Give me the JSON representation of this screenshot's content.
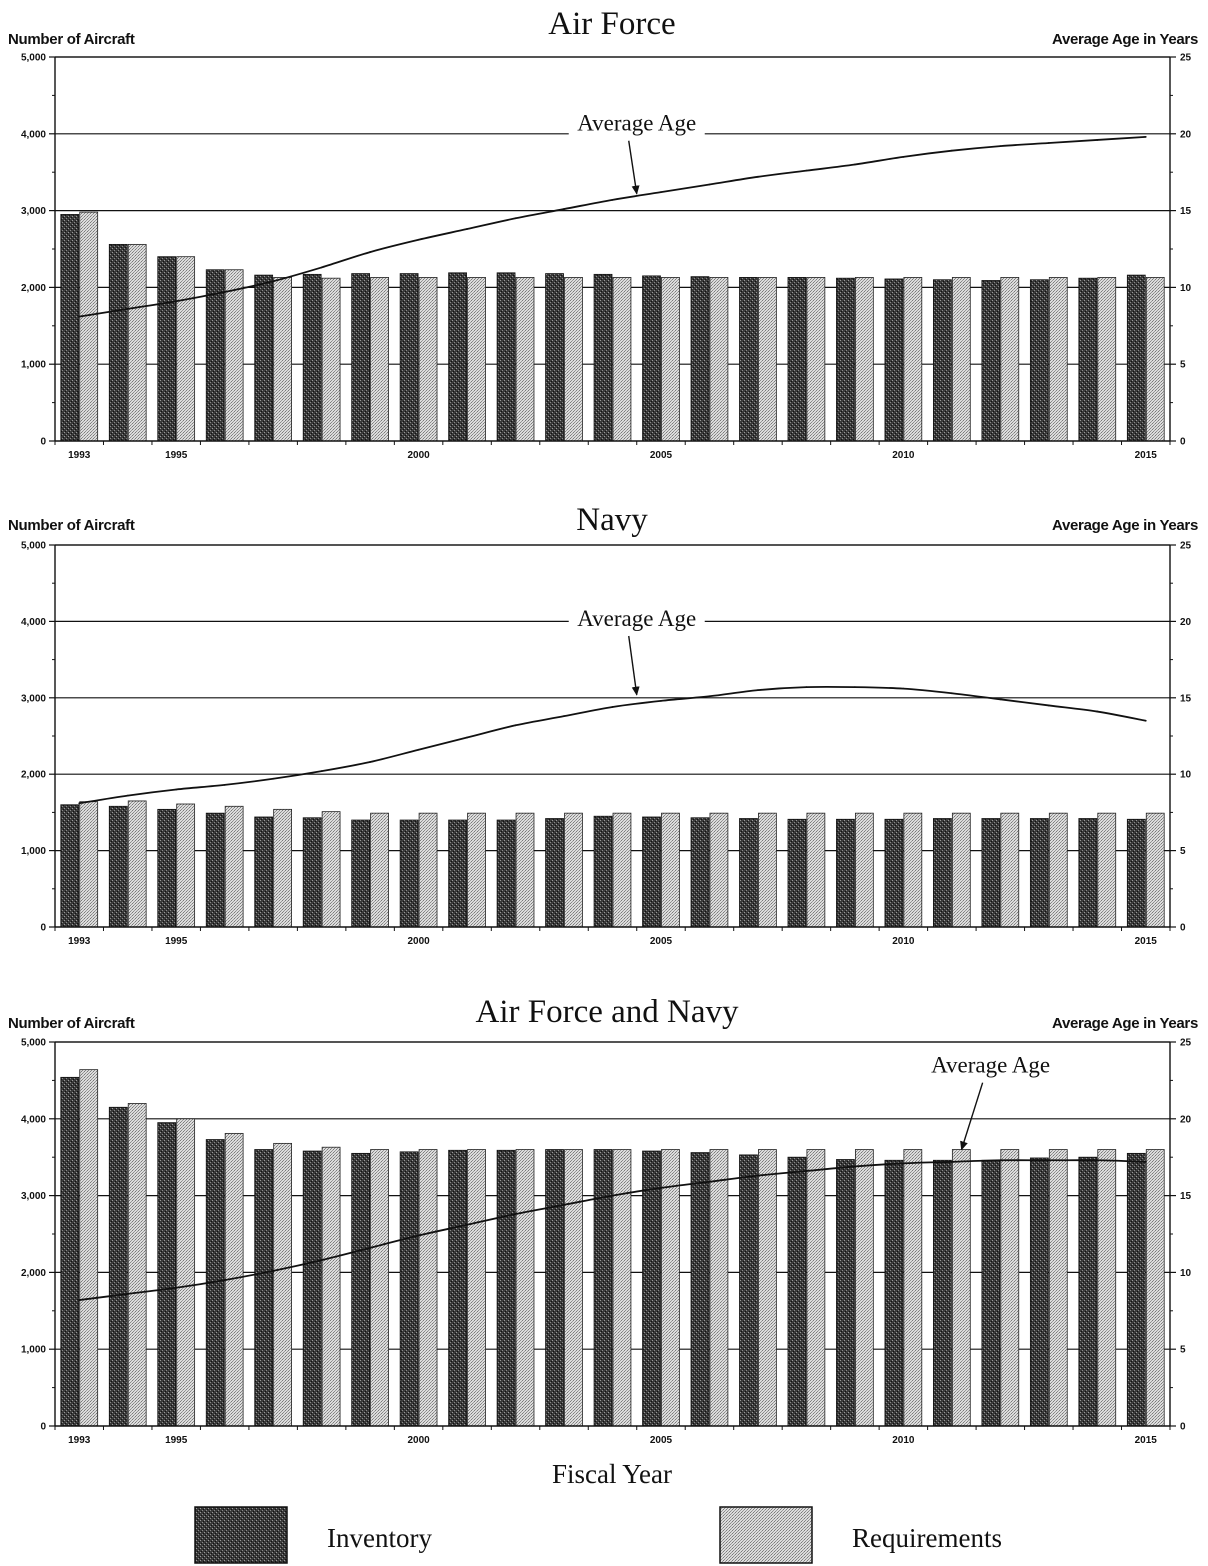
{
  "chart_data": [
    {
      "type": "bar",
      "title": "Air Force",
      "ylabel_left": "Number of Aircraft",
      "ylabel_right": "Average Age in Years",
      "ylim_left": [
        0,
        5000
      ],
      "ylim_right": [
        0,
        25
      ],
      "yticks_left": [
        "0",
        "1,000",
        "2,000",
        "3,000",
        "4,000",
        "5,000"
      ],
      "yticks_right": [
        "0",
        "5",
        "10",
        "15",
        "20",
        "25"
      ],
      "grid": true,
      "x": [
        1993,
        1994,
        1995,
        1996,
        1997,
        1998,
        1999,
        2000,
        2001,
        2002,
        2003,
        2004,
        2005,
        2006,
        2007,
        2008,
        2009,
        2010,
        2011,
        2012,
        2013,
        2014,
        2015
      ],
      "xtick_labels": [
        {
          "x": 1993,
          "label": "1993"
        },
        {
          "x": 1995,
          "label": "1995"
        },
        {
          "x": 2000,
          "label": "2000"
        },
        {
          "x": 2005,
          "label": "2005"
        },
        {
          "x": 2010,
          "label": "2010"
        },
        {
          "x": 2015,
          "label": "2015"
        }
      ],
      "series": [
        {
          "name": "Inventory",
          "values": [
            2950,
            2560,
            2400,
            2230,
            2160,
            2170,
            2180,
            2180,
            2190,
            2190,
            2180,
            2170,
            2150,
            2140,
            2130,
            2130,
            2120,
            2110,
            2100,
            2090,
            2100,
            2120,
            2160
          ]
        },
        {
          "name": "Requirements",
          "values": [
            2980,
            2560,
            2400,
            2230,
            2130,
            2120,
            2130,
            2130,
            2130,
            2130,
            2130,
            2130,
            2130,
            2130,
            2130,
            2130,
            2130,
            2130,
            2130,
            2130,
            2130,
            2130,
            2130
          ]
        },
        {
          "name": "Average Age",
          "axis": "right",
          "values": [
            8.1,
            8.6,
            9.1,
            9.7,
            10.4,
            11.3,
            12.3,
            13.1,
            13.8,
            14.5,
            15.1,
            15.7,
            16.2,
            16.7,
            17.2,
            17.6,
            18.0,
            18.5,
            18.9,
            19.2,
            19.4,
            19.6,
            19.8
          ]
        }
      ],
      "annotations": [
        {
          "text": "Average Age",
          "x": 2004.5,
          "y": 20.2,
          "arrow_to": [
            2004.5,
            16.1
          ]
        }
      ]
    },
    {
      "type": "bar",
      "title": "Navy",
      "ylabel_left": "Number of Aircraft",
      "ylabel_right": "Average Age in Years",
      "ylim_left": [
        0,
        5000
      ],
      "ylim_right": [
        0,
        25
      ],
      "yticks_left": [
        "0",
        "1,000",
        "2,000",
        "3,000",
        "4,000",
        "5,000"
      ],
      "yticks_right": [
        "0",
        "5",
        "10",
        "15",
        "20",
        "25"
      ],
      "grid": true,
      "x": [
        1993,
        1994,
        1995,
        1996,
        1997,
        1998,
        1999,
        2000,
        2001,
        2002,
        2003,
        2004,
        2005,
        2006,
        2007,
        2008,
        2009,
        2010,
        2011,
        2012,
        2013,
        2014,
        2015
      ],
      "xtick_labels": [
        {
          "x": 1993,
          "label": "1993"
        },
        {
          "x": 1995,
          "label": "1995"
        },
        {
          "x": 2000,
          "label": "2000"
        },
        {
          "x": 2005,
          "label": "2005"
        },
        {
          "x": 2010,
          "label": "2010"
        },
        {
          "x": 2015,
          "label": "2015"
        }
      ],
      "series": [
        {
          "name": "Inventory",
          "values": [
            1600,
            1580,
            1540,
            1490,
            1440,
            1430,
            1400,
            1400,
            1400,
            1400,
            1420,
            1450,
            1440,
            1430,
            1420,
            1410,
            1410,
            1410,
            1420,
            1420,
            1420,
            1420,
            1410
          ]
        },
        {
          "name": "Requirements",
          "values": [
            1640,
            1650,
            1610,
            1580,
            1540,
            1510,
            1490,
            1490,
            1490,
            1490,
            1490,
            1490,
            1490,
            1490,
            1490,
            1490,
            1490,
            1490,
            1490,
            1490,
            1490,
            1490,
            1490
          ]
        },
        {
          "name": "Average Age",
          "axis": "right",
          "values": [
            8.1,
            8.6,
            9.0,
            9.3,
            9.7,
            10.2,
            10.8,
            11.6,
            12.4,
            13.2,
            13.8,
            14.4,
            14.8,
            15.1,
            15.5,
            15.7,
            15.7,
            15.6,
            15.3,
            14.9,
            14.5,
            14.1,
            13.5
          ]
        }
      ],
      "annotations": [
        {
          "text": "Average Age",
          "x": 2004.5,
          "y": 19.7,
          "arrow_to": [
            2004.5,
            15.2
          ]
        }
      ]
    },
    {
      "type": "bar",
      "title": "Air Force and Navy",
      "ylabel_left": "Number of Aircraft",
      "ylabel_right": "Average Age in Years",
      "ylim_left": [
        0,
        5000
      ],
      "ylim_right": [
        0,
        25
      ],
      "yticks_left": [
        "0",
        "1,000",
        "2,000",
        "3,000",
        "4,000",
        "5,000"
      ],
      "yticks_right": [
        "0",
        "5",
        "10",
        "15",
        "20",
        "25"
      ],
      "grid": true,
      "x": [
        1993,
        1994,
        1995,
        1996,
        1997,
        1998,
        1999,
        2000,
        2001,
        2002,
        2003,
        2004,
        2005,
        2006,
        2007,
        2008,
        2009,
        2010,
        2011,
        2012,
        2013,
        2014,
        2015
      ],
      "xtick_labels": [
        {
          "x": 1993,
          "label": "1993"
        },
        {
          "x": 1995,
          "label": "1995"
        },
        {
          "x": 2000,
          "label": "2000"
        },
        {
          "x": 2005,
          "label": "2005"
        },
        {
          "x": 2010,
          "label": "2010"
        },
        {
          "x": 2015,
          "label": "2015"
        }
      ],
      "series": [
        {
          "name": "Inventory",
          "values": [
            4540,
            4150,
            3950,
            3730,
            3600,
            3580,
            3550,
            3570,
            3590,
            3590,
            3600,
            3600,
            3580,
            3560,
            3530,
            3500,
            3470,
            3460,
            3460,
            3460,
            3490,
            3500,
            3550
          ]
        },
        {
          "name": "Requirements",
          "values": [
            4640,
            4200,
            4000,
            3810,
            3680,
            3630,
            3600,
            3600,
            3600,
            3600,
            3600,
            3600,
            3600,
            3600,
            3600,
            3600,
            3600,
            3600,
            3600,
            3600,
            3600,
            3600,
            3600
          ]
        },
        {
          "name": "Average Age",
          "axis": "right",
          "values": [
            8.2,
            8.6,
            9.0,
            9.5,
            10.1,
            10.8,
            11.6,
            12.4,
            13.1,
            13.8,
            14.4,
            15.0,
            15.5,
            15.9,
            16.3,
            16.6,
            16.9,
            17.1,
            17.2,
            17.3,
            17.3,
            17.3,
            17.2
          ]
        }
      ],
      "annotations": [
        {
          "text": "Average Age",
          "x": 2011.8,
          "y": 23.0,
          "arrow_to": [
            2011.2,
            18.0
          ]
        }
      ]
    }
  ],
  "shared": {
    "xlabel": "Fiscal Year",
    "legend": [
      {
        "label": "Inventory",
        "color": "#333333"
      },
      {
        "label": "Requirements",
        "color": "#c8c8c8"
      }
    ]
  }
}
